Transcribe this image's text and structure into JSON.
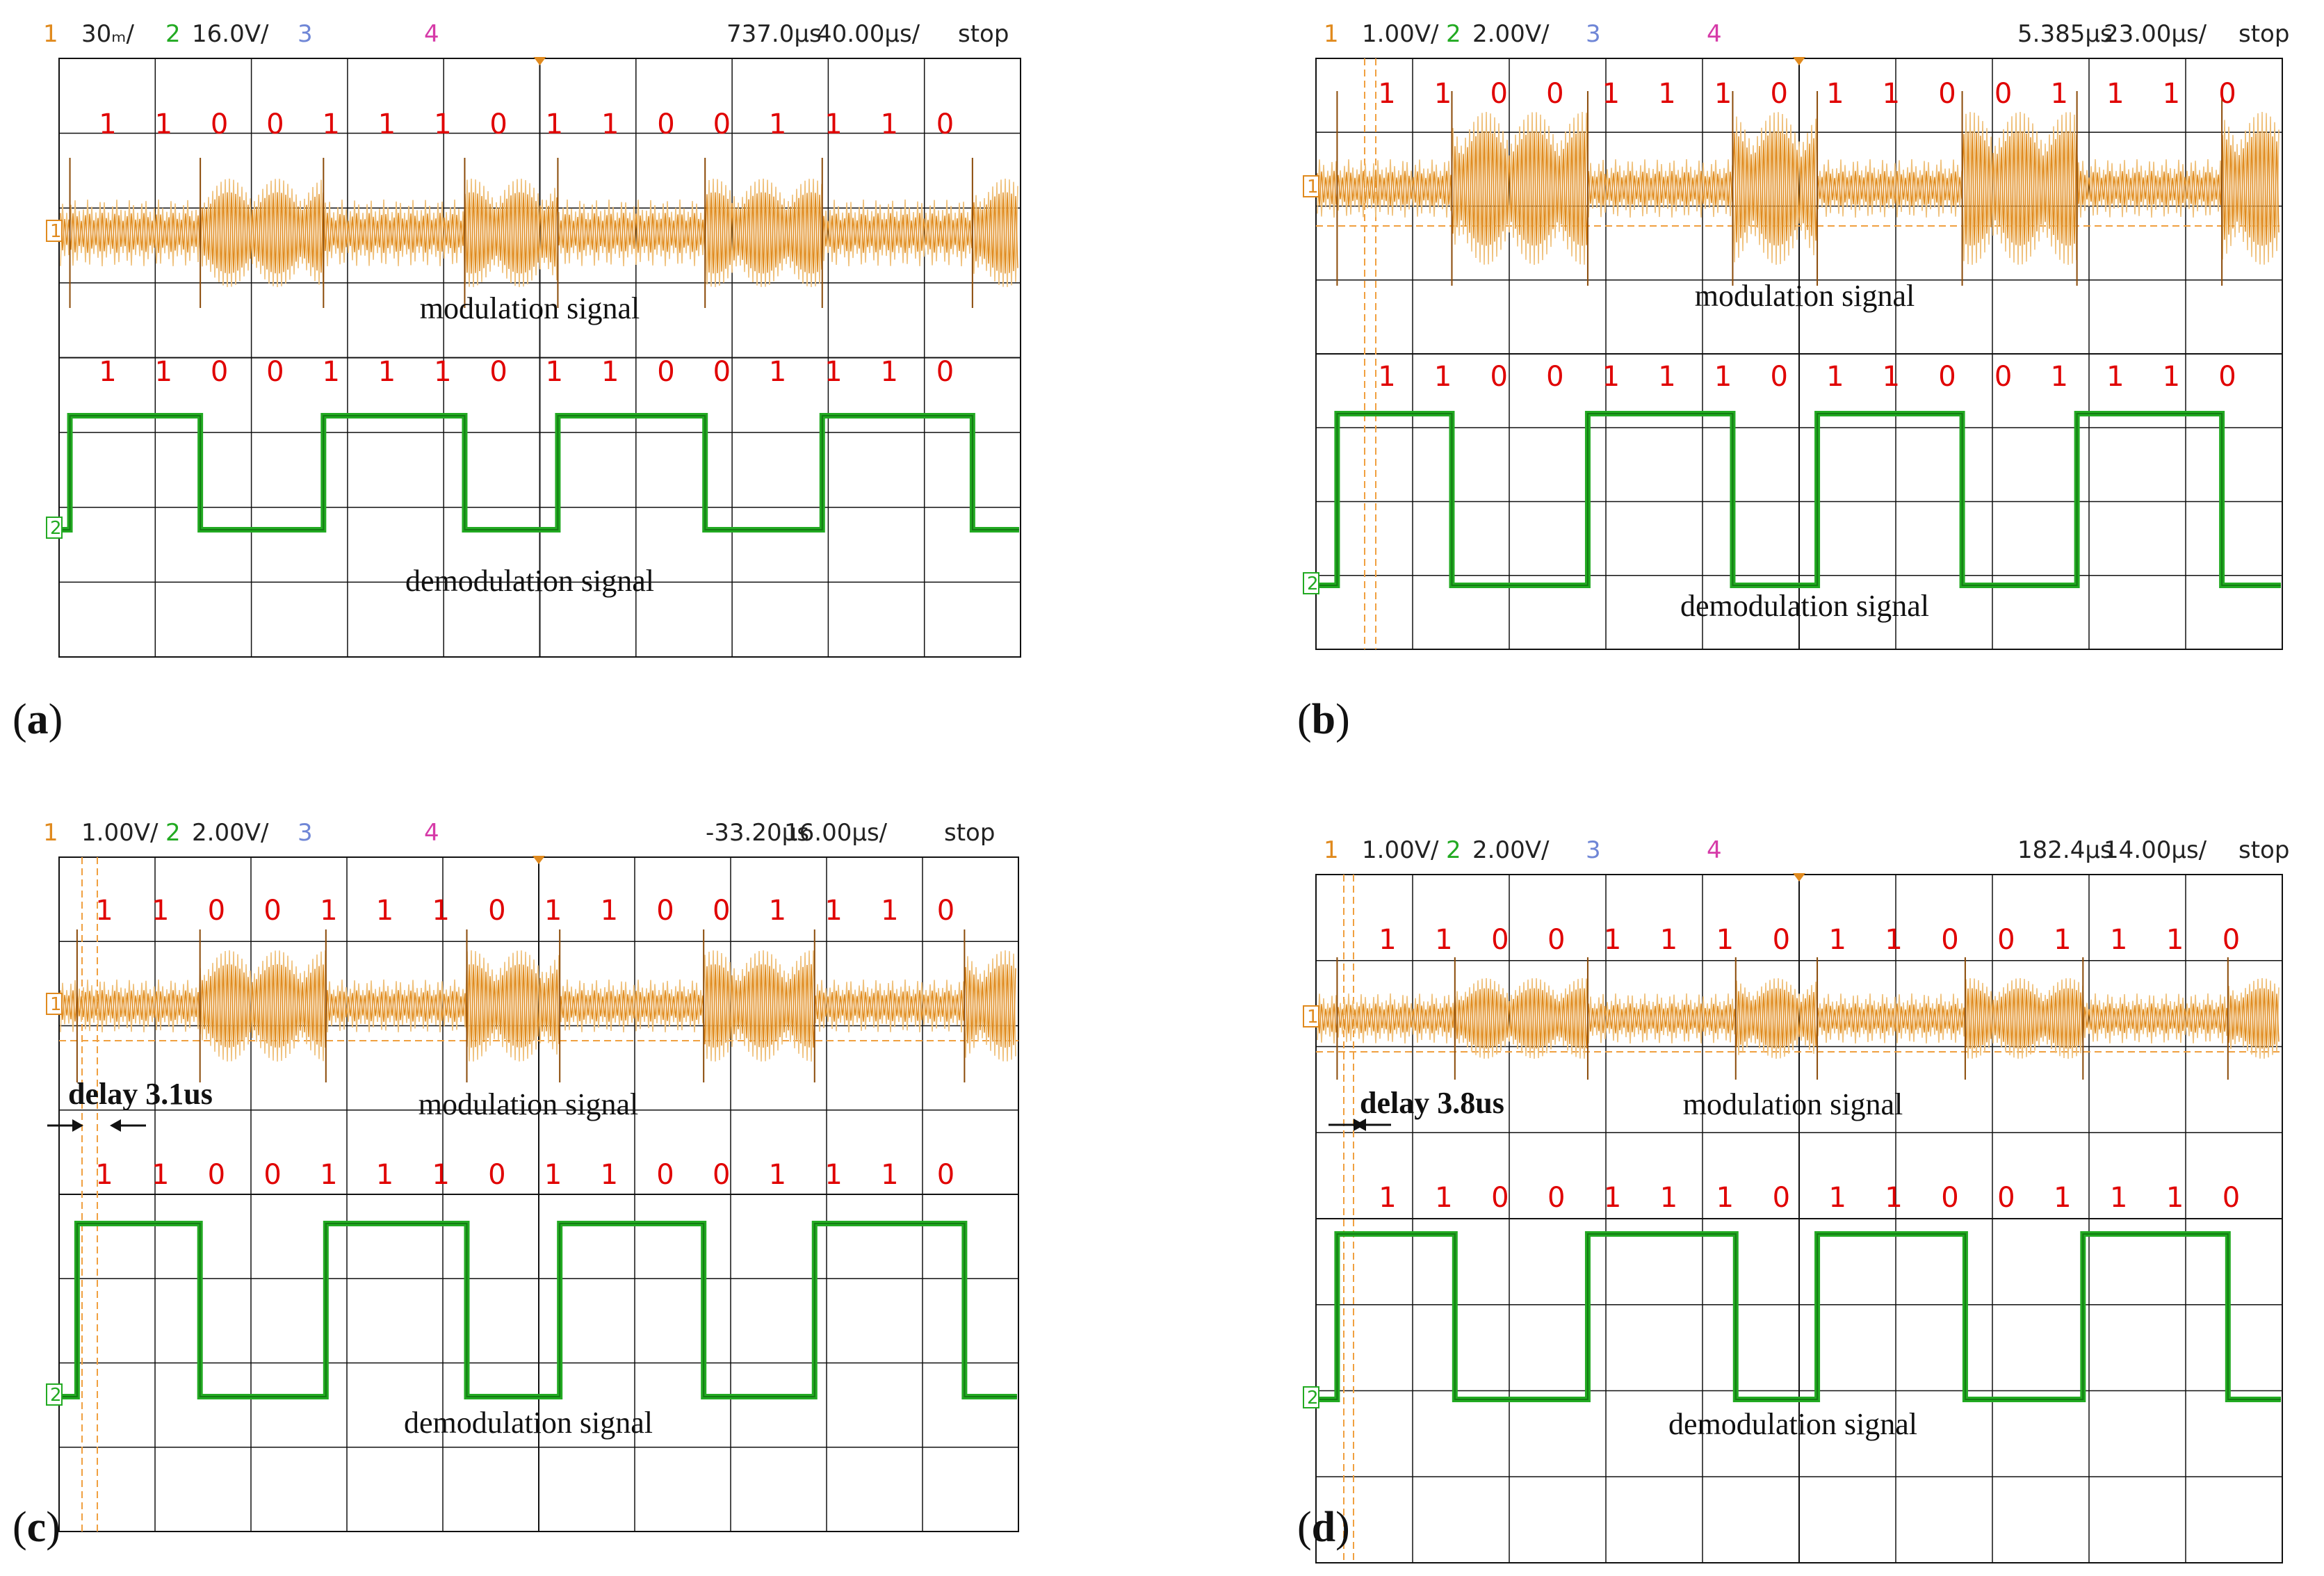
{
  "chart_data": [
    {
      "type": "line",
      "panel_label": "a",
      "header": {
        "ch1_num": "1",
        "ch1_scale": "30ₘ/",
        "ch2_num": "2",
        "ch2_scale": "16.0V/",
        "ch3_num": "3",
        "ch4_num": "4",
        "position": "737.0µs",
        "timebase": "40.00µs/",
        "status": "stop"
      },
      "bits_top": [
        "1",
        "1",
        "0",
        "0",
        "1",
        "1",
        "1",
        "0",
        "1",
        "1",
        "0",
        "0",
        "1",
        "1",
        "1",
        "0"
      ],
      "bits_bottom": [
        "1",
        "1",
        "0",
        "0",
        "1",
        "1",
        "1",
        "0",
        "1",
        "1",
        "0",
        "0",
        "1",
        "1",
        "1",
        "0"
      ],
      "series": [
        {
          "name": "modulation signal",
          "channel": 1
        },
        {
          "name": "demodulation signal",
          "channel": 2,
          "values": [
            1,
            1,
            0,
            0,
            1,
            1,
            1,
            0,
            1,
            1,
            0,
            0,
            1,
            1,
            1,
            0
          ]
        }
      ],
      "modulation_label": "modulation signal",
      "demodulation_label": "demodulation signal",
      "ch1_marker": "1",
      "ch2_marker": "2",
      "delay": null
    },
    {
      "type": "line",
      "panel_label": "b",
      "header": {
        "ch1_num": "1",
        "ch1_scale": "1.00V/",
        "ch2_num": "2",
        "ch2_scale": "2.00V/",
        "ch3_num": "3",
        "ch4_num": "4",
        "position": "5.385µs",
        "timebase": "23.00µs/",
        "status": "stop"
      },
      "bits_top": [
        "1",
        "1",
        "0",
        "0",
        "1",
        "1",
        "1",
        "0",
        "1",
        "1",
        "0",
        "0",
        "1",
        "1",
        "1",
        "0"
      ],
      "bits_bottom": [
        "1",
        "1",
        "0",
        "0",
        "1",
        "1",
        "1",
        "0",
        "1",
        "1",
        "0",
        "0",
        "1",
        "1",
        "1",
        "0"
      ],
      "series": [
        {
          "name": "modulation signal",
          "channel": 1
        },
        {
          "name": "demodulation signal",
          "channel": 2,
          "values": [
            1,
            1,
            0,
            0,
            1,
            1,
            1,
            0,
            1,
            1,
            0,
            0,
            1,
            1,
            1,
            0
          ]
        }
      ],
      "modulation_label": "modulation signal",
      "demodulation_label": "demodulation signal",
      "ch1_marker": "1",
      "ch2_marker": "2",
      "delay": null
    },
    {
      "type": "line",
      "panel_label": "c",
      "header": {
        "ch1_num": "1",
        "ch1_scale": "1.00V/",
        "ch2_num": "2",
        "ch2_scale": "2.00V/",
        "ch3_num": "3",
        "ch4_num": "4",
        "position": "-33.20µs",
        "timebase": "16.00µs/",
        "status": "stop"
      },
      "bits_top": [
        "1",
        "1",
        "0",
        "0",
        "1",
        "1",
        "1",
        "0",
        "1",
        "1",
        "0",
        "0",
        "1",
        "1",
        "1",
        "0"
      ],
      "bits_bottom": [
        "1",
        "1",
        "0",
        "0",
        "1",
        "1",
        "1",
        "0",
        "1",
        "1",
        "0",
        "0",
        "1",
        "1",
        "1",
        "0"
      ],
      "series": [
        {
          "name": "modulation signal",
          "channel": 1
        },
        {
          "name": "demodulation signal",
          "channel": 2,
          "values": [
            1,
            1,
            0,
            0,
            1,
            1,
            1,
            0,
            1,
            1,
            0,
            0,
            1,
            1,
            1,
            0
          ]
        }
      ],
      "modulation_label": "modulation signal",
      "demodulation_label": "demodulation signal",
      "ch1_marker": "1",
      "ch2_marker": "2",
      "delay": "delay 3.1us"
    },
    {
      "type": "line",
      "panel_label": "d",
      "header": {
        "ch1_num": "1",
        "ch1_scale": "1.00V/",
        "ch2_num": "2",
        "ch2_scale": "2.00V/",
        "ch3_num": "3",
        "ch4_num": "4",
        "position": "182.4µs",
        "timebase": "14.00µs/",
        "status": "stop"
      },
      "bits_top": [
        "1",
        "1",
        "0",
        "0",
        "1",
        "1",
        "1",
        "0",
        "1",
        "1",
        "0",
        "0",
        "1",
        "1",
        "1",
        "0"
      ],
      "bits_bottom": [
        "1",
        "1",
        "0",
        "0",
        "1",
        "1",
        "1",
        "0",
        "1",
        "1",
        "0",
        "0",
        "1",
        "1",
        "1",
        "0"
      ],
      "series": [
        {
          "name": "modulation signal",
          "channel": 1
        },
        {
          "name": "demodulation signal",
          "channel": 2,
          "values": [
            1,
            1,
            0,
            0,
            1,
            1,
            1,
            0,
            1,
            1,
            0,
            0,
            1,
            1,
            1,
            0
          ]
        }
      ],
      "modulation_label": "modulation signal",
      "demodulation_label": "demodulation signal",
      "ch1_marker": "1",
      "ch2_marker": "2",
      "delay": "delay 3.8us"
    }
  ],
  "colors": {
    "ch1": "#e08a1e",
    "ch1_dark": "#8a4a08",
    "ch1_light": "#efc07a",
    "ch2": "#22aa22",
    "ch2_dark": "#137a13",
    "ch3": "#6f86d6",
    "ch4": "#d63aa8",
    "bits": "#e00000",
    "grid": "#111111",
    "cursor": "#f0a040"
  }
}
